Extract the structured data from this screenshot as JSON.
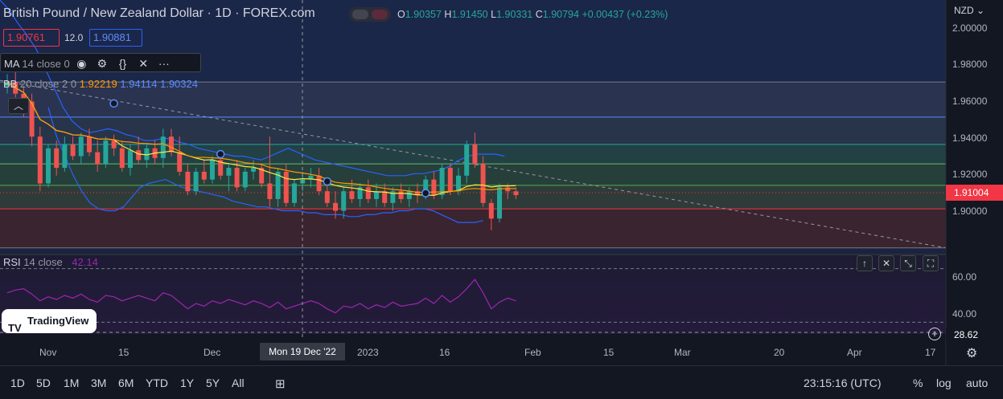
{
  "header": {
    "title": "British Pound / New Zealand Dollar · 1D · FOREX.com",
    "ohlc": {
      "o_label": "O",
      "o": "1.90357",
      "h_label": "H",
      "h": "1.91450",
      "l_label": "L",
      "l": "1.90331",
      "c_label": "C",
      "c": "1.90794",
      "change": "+0.00437 (+0.23%)"
    },
    "sell_price": "1.90761",
    "spread": "12.0",
    "buy_price": "1.90881"
  },
  "indicators": {
    "ma": {
      "name": "MA",
      "params": "14 close 0"
    },
    "bb": {
      "name": "BB",
      "params": "20 close 2 0",
      "basis": "1.92219",
      "upper": "1.94114",
      "lower": "1.90324"
    },
    "rsi": {
      "name": "RSI",
      "params": "14 close",
      "value": "42.14"
    }
  },
  "price_axis": {
    "currency": "NZD",
    "ticks": [
      "2.00000",
      "1.98000",
      "1.96000",
      "1.94000",
      "1.92000",
      "1.90000"
    ],
    "current_price": "1.91004",
    "rsi_ticks": [
      "60.00",
      "40.00"
    ],
    "rsi_crosshair_value": "28.62"
  },
  "time_axis": {
    "ticks": [
      "Nov",
      "15",
      "Dec",
      "2023",
      "16",
      "Feb",
      "15",
      "Mar",
      "20",
      "Apr",
      "17"
    ],
    "crosshair_label": "Mon 19 Dec '22"
  },
  "bottom_toolbar": {
    "timeframes": [
      "1D",
      "5D",
      "1M",
      "3M",
      "6M",
      "YTD",
      "1Y",
      "5Y",
      "All"
    ],
    "clock": "23:15:16 (UTC)",
    "percent": "%",
    "log": "log",
    "auto": "auto"
  },
  "branding": {
    "logo_text": "TradingView"
  },
  "chart_data": {
    "type": "candlestick",
    "y_range": [
      1.88,
      2.01
    ],
    "fib_levels": [
      1.968,
      1.95,
      1.936,
      1.926,
      1.915,
      1.903,
      1.883
    ],
    "trendline": {
      "from": [
        1.968
      ],
      "to": [
        1.883
      ]
    },
    "candles": [
      [
        1.966,
        1.972,
        1.962,
        1.968
      ],
      [
        1.968,
        1.975,
        1.96,
        1.962
      ],
      [
        1.962,
        1.966,
        1.95,
        1.958
      ],
      [
        1.958,
        1.962,
        1.935,
        1.94
      ],
      [
        1.94,
        1.945,
        1.912,
        1.916
      ],
      [
        1.916,
        1.936,
        1.914,
        1.934
      ],
      [
        1.934,
        1.938,
        1.92,
        1.924
      ],
      [
        1.924,
        1.94,
        1.922,
        1.936
      ],
      [
        1.936,
        1.94,
        1.928,
        1.93
      ],
      [
        1.93,
        1.942,
        1.926,
        1.94
      ],
      [
        1.94,
        1.944,
        1.93,
        1.932
      ],
      [
        1.932,
        1.938,
        1.922,
        1.926
      ],
      [
        1.926,
        1.94,
        1.924,
        1.938
      ],
      [
        1.938,
        1.941,
        1.93,
        1.934
      ],
      [
        1.934,
        1.938,
        1.922,
        1.924
      ],
      [
        1.924,
        1.936,
        1.92,
        1.933
      ],
      [
        1.933,
        1.94,
        1.926,
        1.928
      ],
      [
        1.928,
        1.936,
        1.924,
        1.934
      ],
      [
        1.934,
        1.938,
        1.926,
        1.929
      ],
      [
        1.929,
        1.944,
        1.924,
        1.94
      ],
      [
        1.94,
        1.944,
        1.93,
        1.932
      ],
      [
        1.932,
        1.94,
        1.92,
        1.922
      ],
      [
        1.922,
        1.926,
        1.91,
        1.912
      ],
      [
        1.912,
        1.924,
        1.91,
        1.922
      ],
      [
        1.922,
        1.928,
        1.916,
        1.918
      ],
      [
        1.918,
        1.93,
        1.916,
        1.928
      ],
      [
        1.928,
        1.932,
        1.918,
        1.92
      ],
      [
        1.92,
        1.926,
        1.912,
        1.924
      ],
      [
        1.924,
        1.928,
        1.912,
        1.914
      ],
      [
        1.914,
        1.924,
        1.912,
        1.922
      ],
      [
        1.922,
        1.928,
        1.918,
        1.924
      ],
      [
        1.924,
        1.926,
        1.914,
        1.916
      ],
      [
        1.916,
        1.94,
        1.904,
        1.908
      ],
      [
        1.908,
        1.924,
        1.904,
        1.922
      ],
      [
        1.922,
        1.926,
        1.904,
        1.906
      ],
      [
        1.906,
        1.918,
        1.904,
        1.916
      ],
      [
        1.916,
        1.922,
        1.912,
        1.918
      ],
      [
        1.918,
        1.924,
        1.914,
        1.92
      ],
      [
        1.92,
        1.924,
        1.91,
        1.912
      ],
      [
        1.912,
        1.918,
        1.904,
        1.906
      ],
      [
        1.906,
        1.912,
        1.898,
        1.902
      ],
      [
        1.902,
        1.914,
        1.898,
        1.912
      ],
      [
        1.912,
        1.918,
        1.906,
        1.908
      ],
      [
        1.908,
        1.916,
        1.904,
        1.914
      ],
      [
        1.914,
        1.918,
        1.906,
        1.908
      ],
      [
        1.908,
        1.916,
        1.904,
        1.912
      ],
      [
        1.912,
        1.916,
        1.904,
        1.906
      ],
      [
        1.906,
        1.914,
        1.902,
        1.912
      ],
      [
        1.912,
        1.916,
        1.906,
        1.908
      ],
      [
        1.908,
        1.914,
        1.904,
        1.912
      ],
      [
        1.912,
        1.916,
        1.906,
        1.91
      ],
      [
        1.91,
        1.92,
        1.908,
        1.918
      ],
      [
        1.918,
        1.922,
        1.908,
        1.91
      ],
      [
        1.91,
        1.926,
        1.908,
        1.924
      ],
      [
        1.924,
        1.926,
        1.91,
        1.912
      ],
      [
        1.912,
        1.924,
        1.91,
        1.92
      ],
      [
        1.92,
        1.938,
        1.916,
        1.936
      ],
      [
        1.936,
        1.942,
        1.924,
        1.926
      ],
      [
        1.926,
        1.93,
        1.904,
        1.906
      ],
      [
        1.906,
        1.908,
        1.892,
        1.898
      ],
      [
        1.898,
        1.916,
        1.896,
        1.914
      ],
      [
        1.914,
        1.916,
        1.908,
        1.912
      ],
      [
        1.912,
        1.914,
        1.908,
        1.91
      ]
    ],
    "rsi_values": [
      52,
      54,
      55,
      51,
      46,
      49,
      47,
      50,
      48,
      51,
      47,
      45,
      50,
      49,
      46,
      48,
      50,
      48,
      46,
      52,
      50,
      45,
      40,
      44,
      42,
      46,
      44,
      47,
      45,
      43,
      46,
      44,
      41,
      45,
      40,
      42,
      44,
      46,
      44,
      40,
      37,
      42,
      41,
      44,
      40,
      43,
      41,
      45,
      42,
      43,
      44,
      48,
      44,
      50,
      45,
      49,
      55,
      62,
      52,
      40,
      45,
      48,
      46
    ],
    "bb_upper_curve": [
      2.01,
      2.005,
      1.998,
      1.992,
      1.985,
      1.975,
      1.965,
      1.955,
      1.948,
      1.944,
      1.942,
      1.943,
      1.944,
      1.943,
      1.941,
      1.94,
      1.938,
      1.938,
      1.939,
      1.939,
      1.937,
      1.936,
      1.934,
      1.933,
      1.932,
      1.931,
      1.93,
      1.93,
      1.929,
      1.928,
      1.93,
      1.932,
      1.934,
      1.932,
      1.93,
      1.928,
      1.927,
      1.926,
      1.925,
      1.924,
      1.923,
      1.922,
      1.921,
      1.92,
      1.92,
      1.92,
      1.921,
      1.921,
      1.922,
      1.923,
      1.925,
      1.928,
      1.93,
      1.931,
      1.931,
      1.931,
      1.93
    ],
    "bb_lower_curve": [
      1.955,
      1.94,
      1.93,
      1.92,
      1.912,
      1.906,
      1.903,
      1.902,
      1.902,
      1.904,
      1.909,
      1.914,
      1.916,
      1.917,
      1.918,
      1.916,
      1.914,
      1.913,
      1.912,
      1.911,
      1.91,
      1.909,
      1.907,
      1.906,
      1.905,
      1.904,
      1.904,
      1.903,
      1.902,
      1.902,
      1.902,
      1.901,
      1.901,
      1.9,
      1.9,
      1.9,
      1.899,
      1.899,
      1.9,
      1.9,
      1.901,
      1.901,
      1.902,
      1.902,
      1.903,
      1.903,
      1.902,
      1.9,
      1.898,
      1.896,
      1.896,
      1.896,
      1.897
    ]
  }
}
